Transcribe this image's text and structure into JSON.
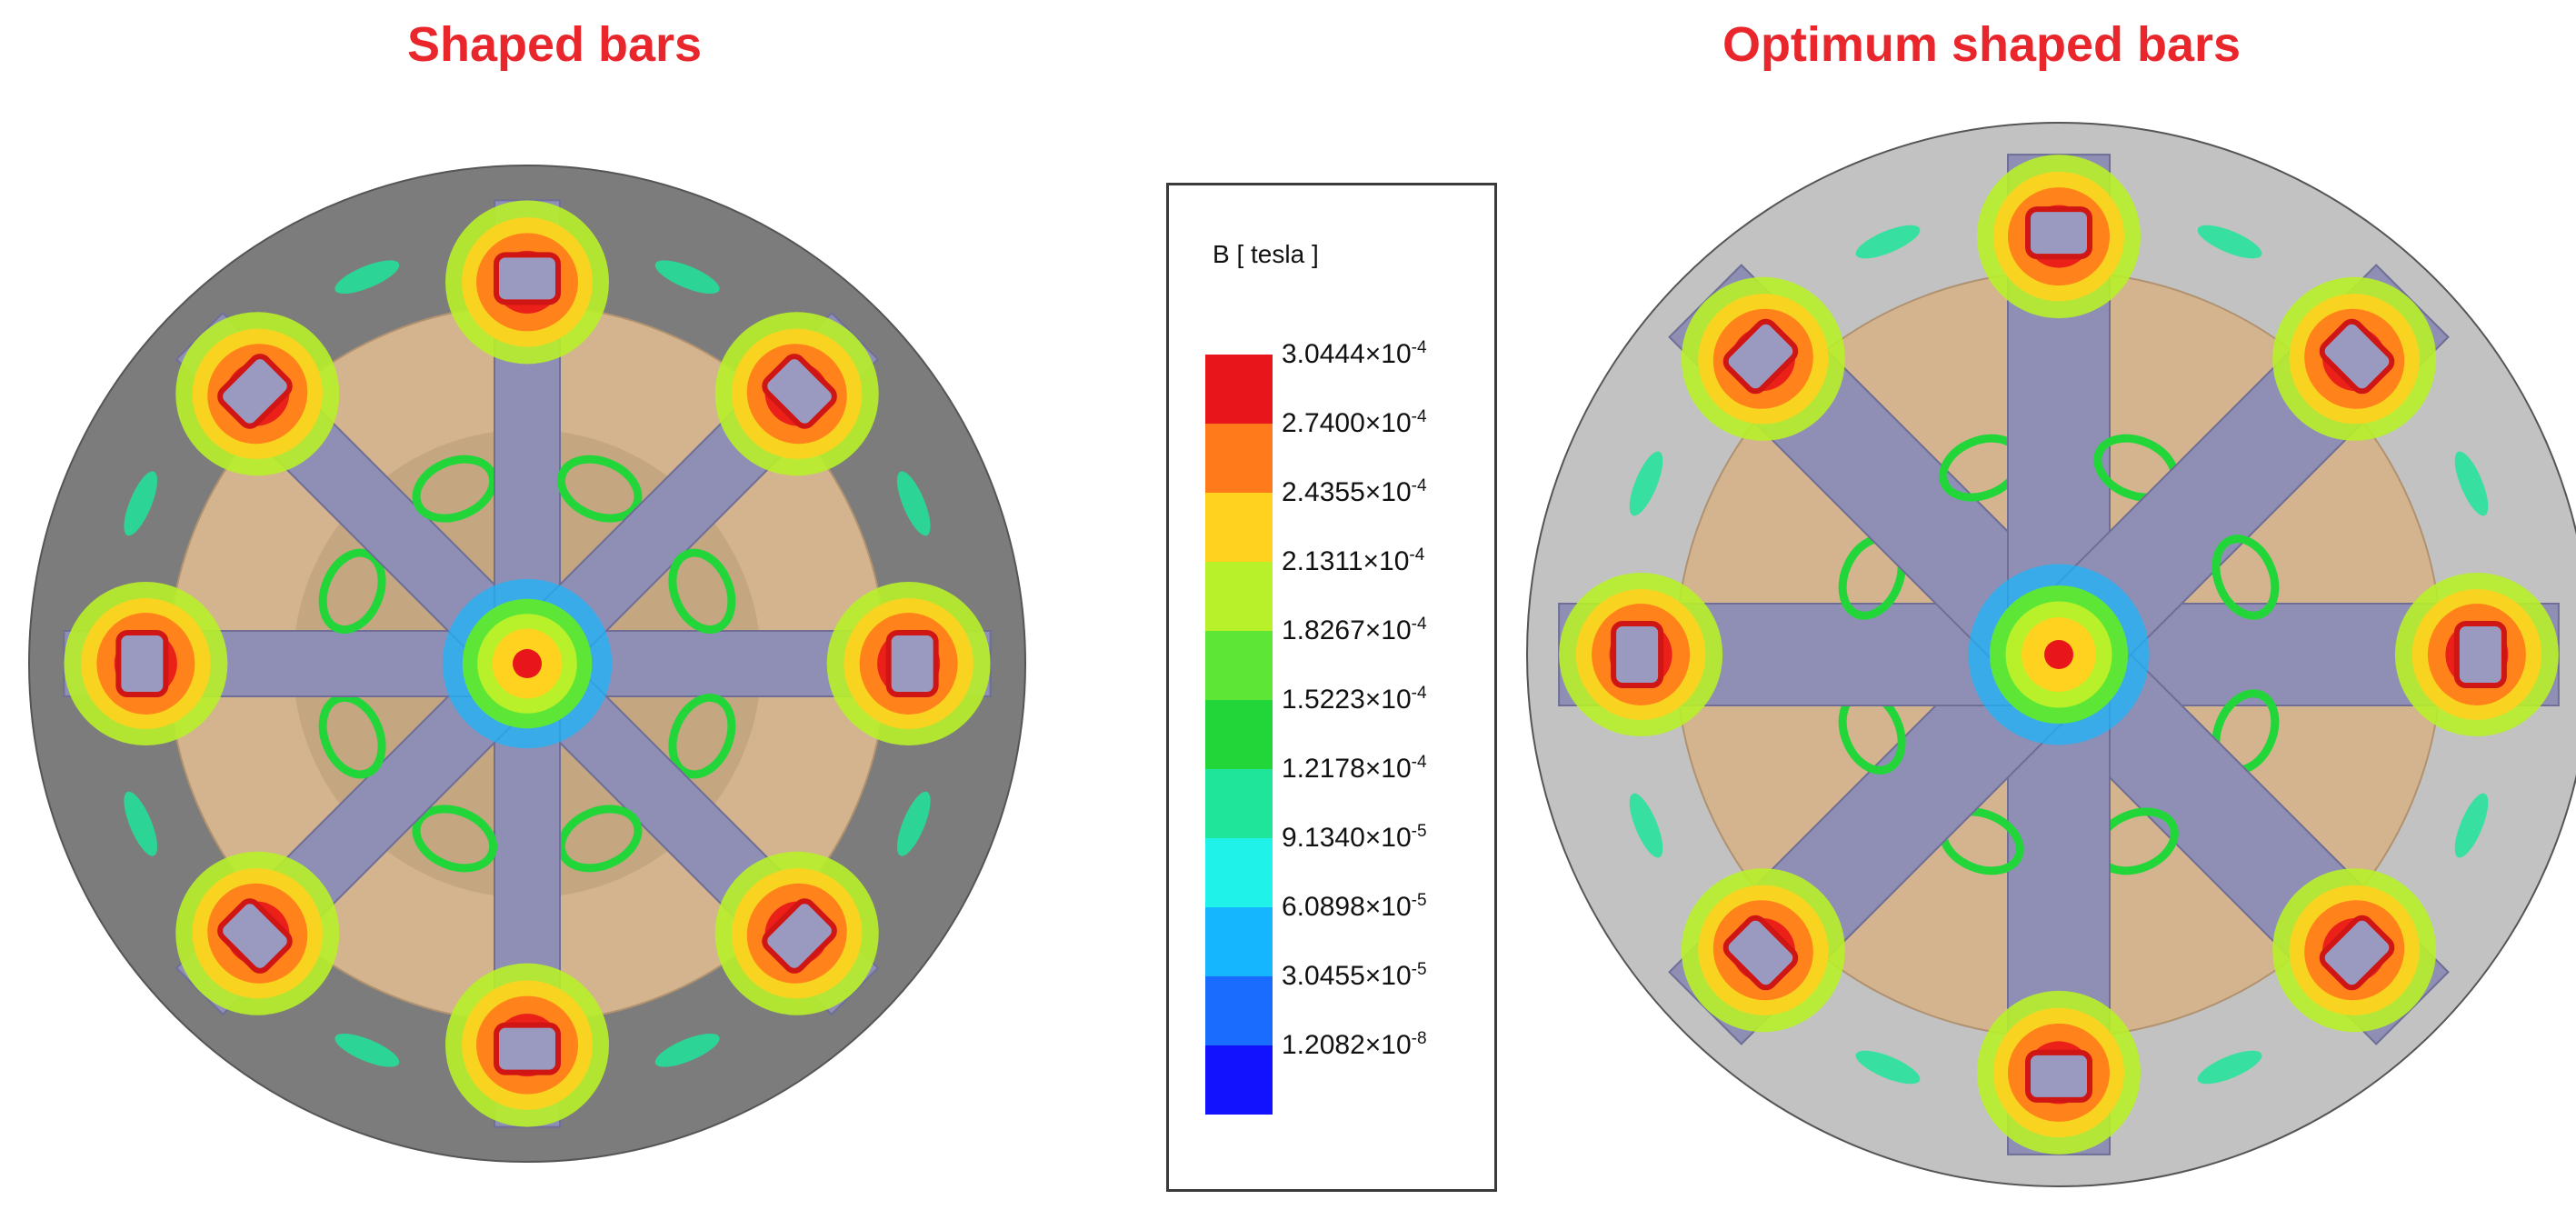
{
  "panels": [
    {
      "title": "Shaped bars"
    },
    {
      "title": "Optimum shaped bars"
    }
  ],
  "legend": {
    "title": "B [ tesla ]",
    "entries": [
      {
        "mantissa": "3.0444×10",
        "exp": "-4",
        "color": "#e8151a"
      },
      {
        "mantissa": "2.7400×10",
        "exp": "-4",
        "color": "#ff7a1a"
      },
      {
        "mantissa": "2.4355×10",
        "exp": "-4",
        "color": "#ffd21f"
      },
      {
        "mantissa": "2.1311×10",
        "exp": "-4",
        "color": "#b8f02a"
      },
      {
        "mantissa": "1.8267×10",
        "exp": "-4",
        "color": "#5ee636"
      },
      {
        "mantissa": "1.5223×10",
        "exp": "-4",
        "color": "#22d63a"
      },
      {
        "mantissa": "1.2178×10",
        "exp": "-4",
        "color": "#1fe59a"
      },
      {
        "mantissa": "9.1340×10",
        "exp": "-5",
        "color": "#1ff2e8"
      },
      {
        "mantissa": "6.0898×10",
        "exp": "-5",
        "color": "#16b6ff"
      },
      {
        "mantissa": "3.0455×10",
        "exp": "-5",
        "color": "#1a6cff"
      },
      {
        "mantissa": "1.2082×10",
        "exp": "-8",
        "color": "#1212ff"
      }
    ]
  },
  "colors": {
    "title": "#e8262b",
    "outer_left": "#7c7c7c",
    "outer_right": "#c2c2c2",
    "core": "#d3b48e",
    "bar": "#8f8fb5"
  }
}
